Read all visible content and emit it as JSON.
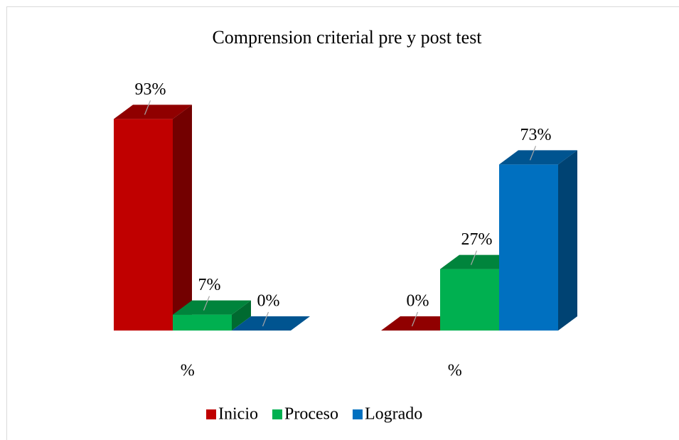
{
  "chart_data": {
    "type": "bar3d",
    "title": "Comprension criterial pre y post test",
    "categories": [
      "%",
      "%"
    ],
    "series": [
      {
        "name": "Inicio",
        "color": "#c00000",
        "values": [
          93,
          0
        ],
        "value_labels": [
          "93%",
          "0%"
        ]
      },
      {
        "name": "Proceso",
        "color": "#00b050",
        "values": [
          7,
          27
        ],
        "value_labels": [
          "7%",
          "27%"
        ]
      },
      {
        "name": "Logrado",
        "color": "#0070c0",
        "values": [
          0,
          73
        ],
        "value_labels": [
          "0%",
          "73%"
        ]
      }
    ]
  }
}
